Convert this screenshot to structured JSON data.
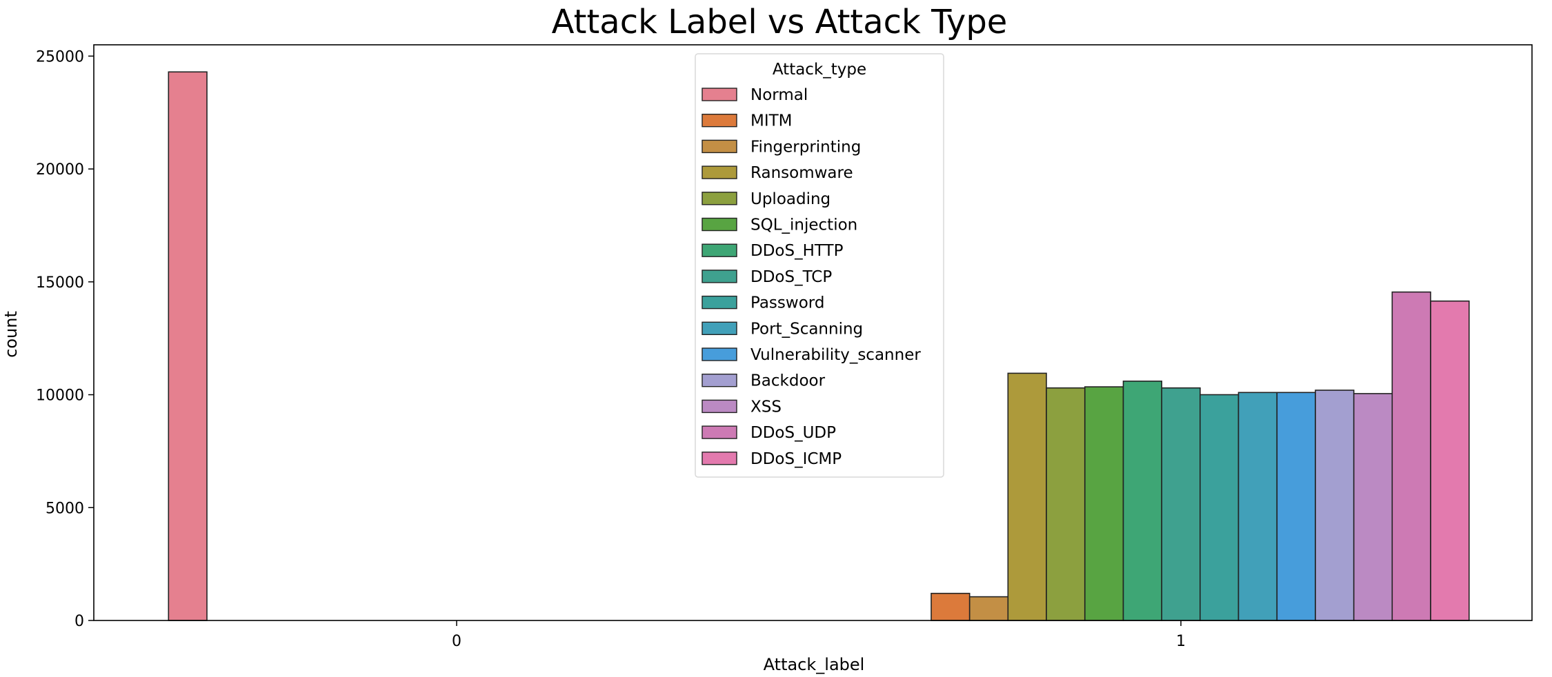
{
  "chart_data": {
    "type": "bar",
    "title": "Attack Label vs Attack Type",
    "xlabel": "Attack_label",
    "ylabel": "count",
    "ylim": [
      0,
      25500
    ],
    "yticks": [
      0,
      5000,
      10000,
      15000,
      20000,
      25000
    ],
    "categories": [
      "0",
      "1"
    ],
    "legend_title": "Attack_type",
    "legend_position": "top-center",
    "grid": false,
    "series": [
      {
        "name": "Normal",
        "color": "#e5808f",
        "values": [
          24300,
          0
        ]
      },
      {
        "name": "MITM",
        "color": "#dc7a3b",
        "values": [
          0,
          1200
        ]
      },
      {
        "name": "Fingerprinting",
        "color": "#c38f45",
        "values": [
          0,
          1050
        ]
      },
      {
        "name": "Ransomware",
        "color": "#ad9a3b",
        "values": [
          0,
          10950
        ]
      },
      {
        "name": "Uploading",
        "color": "#8ca03f",
        "values": [
          0,
          10300
        ]
      },
      {
        "name": "SQL_injection",
        "color": "#58a442",
        "values": [
          0,
          10350
        ]
      },
      {
        "name": "DDoS_HTTP",
        "color": "#3ea675",
        "values": [
          0,
          10600
        ]
      },
      {
        "name": "DDoS_TCP",
        "color": "#3fa18f",
        "values": [
          0,
          10300
        ]
      },
      {
        "name": "Password",
        "color": "#3ba19c",
        "values": [
          0,
          10000
        ]
      },
      {
        "name": "Port_Scanning",
        "color": "#41a0b9",
        "values": [
          0,
          10100
        ]
      },
      {
        "name": "Vulnerability_scanner",
        "color": "#479ddb",
        "values": [
          0,
          10100
        ]
      },
      {
        "name": "Backdoor",
        "color": "#a39fd0",
        "values": [
          0,
          10200
        ]
      },
      {
        "name": "XSS",
        "color": "#bb8ac3",
        "values": [
          0,
          10050
        ]
      },
      {
        "name": "DDoS_UDP",
        "color": "#cd7ab4",
        "values": [
          0,
          14550
        ]
      },
      {
        "name": "DDoS_ICMP",
        "color": "#e37aae",
        "values": [
          0,
          14150
        ]
      }
    ]
  }
}
